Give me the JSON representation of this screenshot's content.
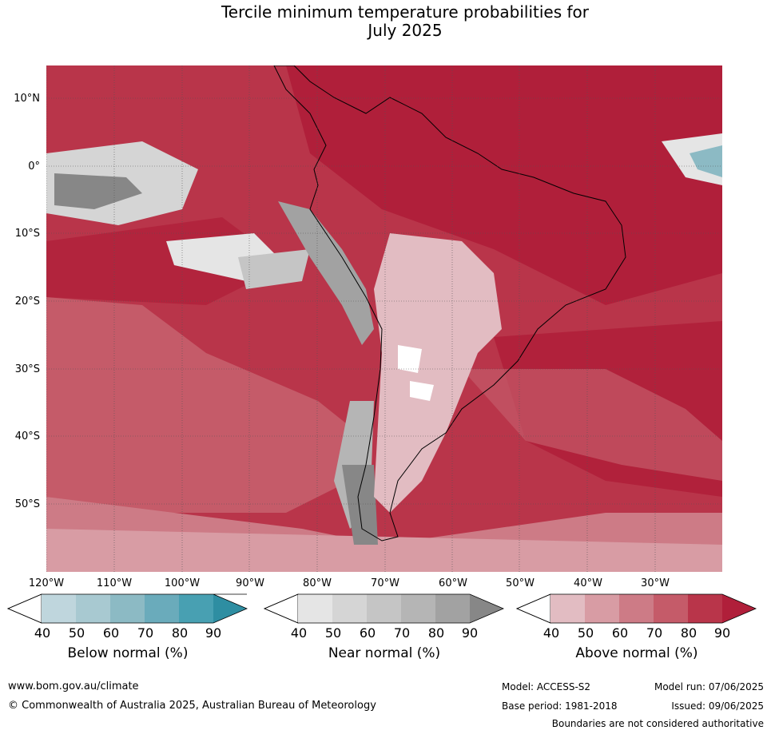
{
  "title_line1": "Tercile minimum temperature probabilities for",
  "title_line2": "July 2025",
  "lat_labels": [
    "10°N",
    "0°",
    "10°S",
    "20°S",
    "30°S",
    "40°S",
    "50°S"
  ],
  "lon_labels": [
    "120°W",
    "110°W",
    "100°W",
    "90°W",
    "80°W",
    "70°W",
    "60°W",
    "50°W",
    "40°W",
    "30°W"
  ],
  "legends": [
    {
      "title": "Below normal (%)",
      "ticks": [
        "40",
        "50",
        "60",
        "70",
        "80",
        "90"
      ],
      "colors": [
        "#bfd6dd",
        "#a8c9d1",
        "#8cbac4",
        "#6aabbb",
        "#48a0b2",
        "#2e8ea2"
      ]
    },
    {
      "title": "Near normal (%)",
      "ticks": [
        "40",
        "50",
        "60",
        "70",
        "80",
        "90"
      ],
      "colors": [
        "#e5e5e5",
        "#d5d5d5",
        "#c5c5c5",
        "#b5b5b5",
        "#a2a2a2",
        "#878787"
      ]
    },
    {
      "title": "Above normal (%)",
      "ticks": [
        "40",
        "50",
        "60",
        "70",
        "80",
        "90"
      ],
      "colors": [
        "#e2bcc2",
        "#d89ca4",
        "#cd7b86",
        "#c55b69",
        "#b9354a",
        "#b01f3a"
      ]
    }
  ],
  "footer": {
    "url": "www.bom.gov.au/climate",
    "copyright": "© Commonwealth of Australia 2025, Australian Bureau of Meteorology",
    "model": "Model: ACCESS-S2",
    "base_period": "Base period: 1981-2018",
    "model_run": "Model run: 07/06/2025",
    "issued": "Issued: 09/06/2025",
    "disclaimer": "Boundaries are not considered authoritative"
  }
}
